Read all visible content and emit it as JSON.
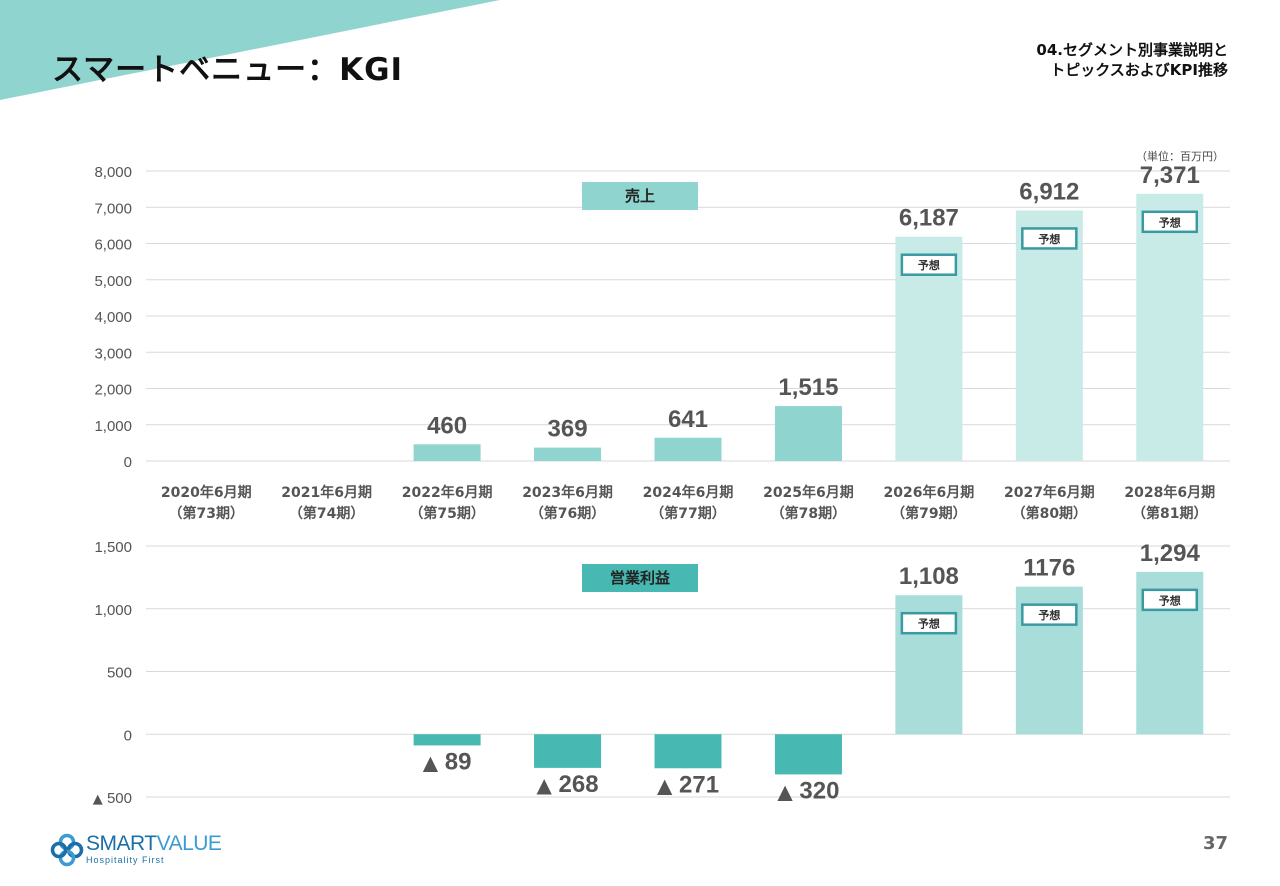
{
  "page": {
    "title": "スマートベニュー：KGI",
    "section_line1": "04.セグメント別事業説明と",
    "section_line2": "トピックスおよびKPI推移",
    "unit": "（単位：百万円）",
    "page_number": "37"
  },
  "brand": {
    "name_bold": "SMART",
    "name_light": "VALUE",
    "tagline": "Hospitality First",
    "color": "#1a6fa8"
  },
  "colors": {
    "banner": "#8fd4cf",
    "sales_actual": "#8fd4cf",
    "sales_forecast": "#c8ebe8",
    "op_actual": "#47b8b2",
    "op_forecast": "#a8ddd9",
    "badge_border": "#3a9aa2"
  },
  "categories": [
    [
      "2020年6月期",
      "（第73期）"
    ],
    [
      "2021年6月期",
      "（第74期）"
    ],
    [
      "2022年6月期",
      "（第75期）"
    ],
    [
      "2023年6月期",
      "（第76期）"
    ],
    [
      "2024年6月期",
      "（第77期）"
    ],
    [
      "2025年6月期",
      "（第78期）"
    ],
    [
      "2026年6月期",
      "（第79期）"
    ],
    [
      "2027年6月期",
      "（第80期）"
    ],
    [
      "2028年6月期",
      "（第81期）"
    ]
  ],
  "forecast_badge": "予想",
  "chart_data": [
    {
      "type": "bar",
      "series_label": "売上",
      "categories": [
        "2020年6月期（第73期）",
        "2021年6月期（第74期）",
        "2022年6月期（第75期）",
        "2023年6月期（第76期）",
        "2024年6月期（第77期）",
        "2025年6月期（第78期）",
        "2026年6月期（第79期）",
        "2027年6月期（第80期）",
        "2028年6月期（第81期）"
      ],
      "values": [
        null,
        null,
        460,
        369,
        641,
        1515,
        6187,
        6912,
        7371
      ],
      "labels": [
        "",
        "",
        "460",
        "369",
        "641",
        "1,515",
        "6,187",
        "6,912",
        "7,371"
      ],
      "forecast": [
        false,
        false,
        false,
        false,
        false,
        false,
        true,
        true,
        true
      ],
      "ylim": [
        0,
        8000
      ],
      "yticks": [
        0,
        1000,
        2000,
        3000,
        4000,
        5000,
        6000,
        7000,
        8000
      ],
      "ytick_labels": [
        "0",
        "1,000",
        "2,000",
        "3,000",
        "4,000",
        "5,000",
        "6,000",
        "7,000",
        "8,000"
      ],
      "grid": true
    },
    {
      "type": "bar",
      "series_label": "営業利益",
      "categories": [
        "2020年6月期（第73期）",
        "2021年6月期（第74期）",
        "2022年6月期（第75期）",
        "2023年6月期（第76期）",
        "2024年6月期（第77期）",
        "2025年6月期（第78期）",
        "2026年6月期（第79期）",
        "2027年6月期（第80期）",
        "2028年6月期（第81期）"
      ],
      "values": [
        null,
        null,
        -89,
        -268,
        -271,
        -320,
        1108,
        1176,
        1294
      ],
      "labels": [
        "",
        "",
        "▲ 89",
        "▲ 268",
        "▲ 271",
        "▲ 320",
        "1,108",
        "1176",
        "1,294"
      ],
      "forecast": [
        false,
        false,
        false,
        false,
        false,
        false,
        true,
        true,
        true
      ],
      "ylim": [
        -500,
        1500
      ],
      "yticks": [
        -500,
        0,
        500,
        1000,
        1500
      ],
      "ytick_labels": [
        "▲ 500",
        "0",
        "500",
        "1,000",
        "1,500"
      ],
      "grid": true
    }
  ]
}
